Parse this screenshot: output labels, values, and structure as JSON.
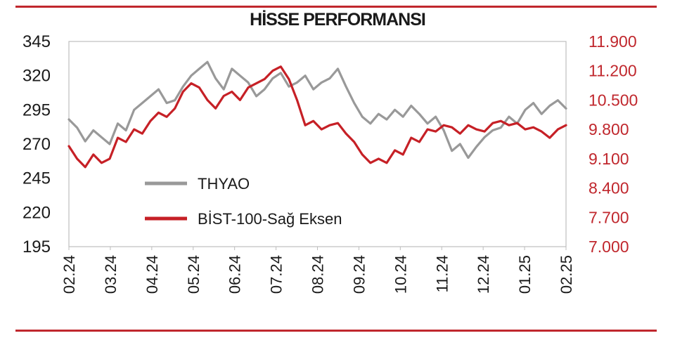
{
  "chart_data": {
    "type": "line",
    "title": "HİSSE PERFORMANSI",
    "x_tick_labels": [
      "02.24",
      "03.24",
      "04.24",
      "05.24",
      "06.24",
      "07.24",
      "08.24",
      "09.24",
      "10.24",
      "11.24",
      "12.24",
      "01.25",
      "02.25"
    ],
    "left_axis": {
      "ticks": [
        "195",
        "220",
        "245",
        "270",
        "295",
        "320",
        "345"
      ],
      "ylim": [
        195,
        345
      ],
      "color": "#1a1a1a"
    },
    "right_axis": {
      "ticks": [
        "7.000",
        "7.700",
        "8.400",
        "9.100",
        "9.800",
        "10.500",
        "11.200",
        "11.900"
      ],
      "ylim": [
        7000,
        11900
      ],
      "color": "#c0272d"
    },
    "legend": {
      "placement": "center-left"
    },
    "grid": false,
    "series": [
      {
        "name": "THYAO",
        "axis": "left",
        "color": "#999999",
        "x": [
          0,
          0.2,
          0.4,
          0.6,
          0.8,
          1,
          1.2,
          1.4,
          1.6,
          1.8,
          2,
          2.2,
          2.4,
          2.6,
          2.8,
          3,
          3.2,
          3.4,
          3.6,
          3.8,
          4,
          4.2,
          4.4,
          4.6,
          4.8,
          5,
          5.2,
          5.4,
          5.6,
          5.8,
          6,
          6.2,
          6.4,
          6.6,
          6.8,
          7,
          7.2,
          7.4,
          7.6,
          7.8,
          8,
          8.2,
          8.4,
          8.6,
          8.8,
          9,
          9.2,
          9.4,
          9.6,
          9.8,
          10,
          10.2,
          10.4,
          10.6,
          10.8,
          11,
          11.2,
          11.4,
          11.6,
          11.8,
          12,
          12.2
        ],
        "values": [
          288,
          282,
          272,
          280,
          275,
          270,
          285,
          280,
          295,
          300,
          305,
          310,
          300,
          302,
          312,
          320,
          325,
          330,
          318,
          310,
          325,
          320,
          315,
          305,
          310,
          318,
          322,
          312,
          315,
          320,
          310,
          315,
          318,
          325,
          312,
          300,
          290,
          285,
          292,
          288,
          295,
          290,
          298,
          292,
          285,
          290,
          280,
          265,
          270,
          260,
          268,
          275,
          280,
          282,
          290,
          285,
          295,
          300,
          292,
          298,
          302,
          296
        ]
      },
      {
        "name": "BİST-100-Sağ Eksen",
        "axis": "right",
        "color": "#c62026",
        "x": [
          0,
          0.2,
          0.4,
          0.6,
          0.8,
          1,
          1.2,
          1.4,
          1.6,
          1.8,
          2,
          2.2,
          2.4,
          2.6,
          2.8,
          3,
          3.2,
          3.4,
          3.6,
          3.8,
          4,
          4.2,
          4.4,
          4.6,
          4.8,
          5,
          5.2,
          5.4,
          5.6,
          5.8,
          6,
          6.2,
          6.4,
          6.6,
          6.8,
          7,
          7.2,
          7.4,
          7.6,
          7.8,
          8,
          8.2,
          8.4,
          8.6,
          8.8,
          9,
          9.2,
          9.4,
          9.6,
          9.8,
          10,
          10.2,
          10.4,
          10.6,
          10.8,
          11,
          11.2,
          11.4,
          11.6,
          11.8,
          12,
          12.2
        ],
        "values": [
          9400,
          9100,
          8900,
          9200,
          9000,
          9100,
          9600,
          9500,
          9800,
          9700,
          10000,
          10200,
          10100,
          10300,
          10700,
          10900,
          10800,
          10500,
          10300,
          10600,
          10700,
          10500,
          10800,
          10900,
          11000,
          11200,
          11300,
          11000,
          10500,
          9900,
          10000,
          9800,
          9900,
          9950,
          9700,
          9500,
          9200,
          9000,
          9100,
          9000,
          9300,
          9200,
          9600,
          9500,
          9800,
          9750,
          9900,
          9850,
          9700,
          9900,
          9800,
          9750,
          9950,
          10000,
          9900,
          9950,
          9800,
          9850,
          9750,
          9600,
          9800,
          9900
        ]
      }
    ]
  }
}
